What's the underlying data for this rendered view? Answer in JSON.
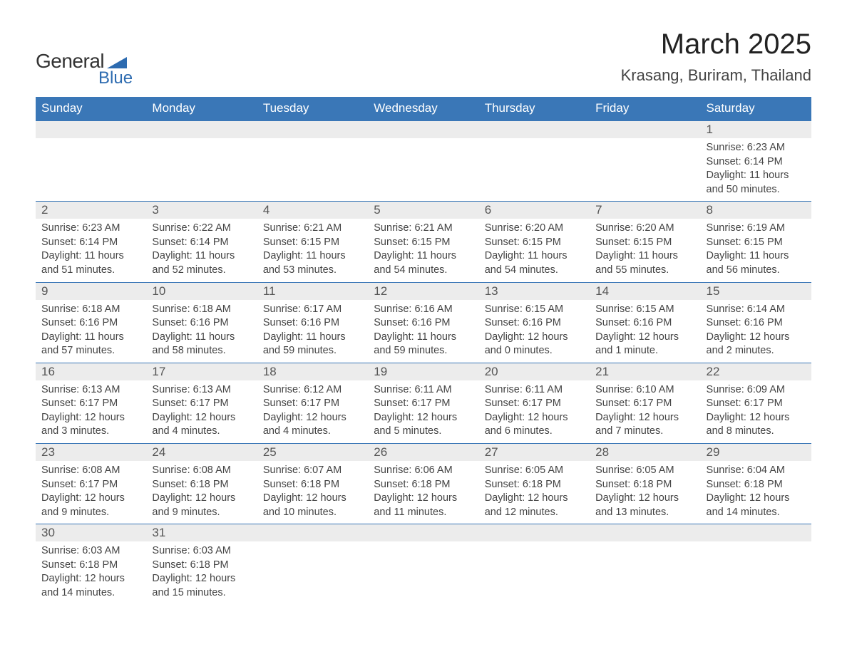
{
  "logo": {
    "text_general": "General",
    "text_blue": "Blue",
    "shape_color": "#2d6bb0"
  },
  "title": "March 2025",
  "location": "Krasang, Buriram, Thailand",
  "colors": {
    "header_bg": "#3a77b7",
    "header_text": "#ffffff",
    "daynum_bg": "#ececec",
    "daynum_text": "#555555",
    "body_text": "#444444",
    "border": "#3a77b7",
    "page_bg": "#ffffff"
  },
  "typography": {
    "title_fontsize": 40,
    "location_fontsize": 22,
    "weekday_fontsize": 17,
    "daynum_fontsize": 17,
    "cell_fontsize": 14.5
  },
  "weekdays": [
    "Sunday",
    "Monday",
    "Tuesday",
    "Wednesday",
    "Thursday",
    "Friday",
    "Saturday"
  ],
  "weeks": [
    [
      {
        "day": "",
        "sunrise": "",
        "sunset": "",
        "daylight1": "",
        "daylight2": ""
      },
      {
        "day": "",
        "sunrise": "",
        "sunset": "",
        "daylight1": "",
        "daylight2": ""
      },
      {
        "day": "",
        "sunrise": "",
        "sunset": "",
        "daylight1": "",
        "daylight2": ""
      },
      {
        "day": "",
        "sunrise": "",
        "sunset": "",
        "daylight1": "",
        "daylight2": ""
      },
      {
        "day": "",
        "sunrise": "",
        "sunset": "",
        "daylight1": "",
        "daylight2": ""
      },
      {
        "day": "",
        "sunrise": "",
        "sunset": "",
        "daylight1": "",
        "daylight2": ""
      },
      {
        "day": "1",
        "sunrise": "Sunrise: 6:23 AM",
        "sunset": "Sunset: 6:14 PM",
        "daylight1": "Daylight: 11 hours",
        "daylight2": "and 50 minutes."
      }
    ],
    [
      {
        "day": "2",
        "sunrise": "Sunrise: 6:23 AM",
        "sunset": "Sunset: 6:14 PM",
        "daylight1": "Daylight: 11 hours",
        "daylight2": "and 51 minutes."
      },
      {
        "day": "3",
        "sunrise": "Sunrise: 6:22 AM",
        "sunset": "Sunset: 6:14 PM",
        "daylight1": "Daylight: 11 hours",
        "daylight2": "and 52 minutes."
      },
      {
        "day": "4",
        "sunrise": "Sunrise: 6:21 AM",
        "sunset": "Sunset: 6:15 PM",
        "daylight1": "Daylight: 11 hours",
        "daylight2": "and 53 minutes."
      },
      {
        "day": "5",
        "sunrise": "Sunrise: 6:21 AM",
        "sunset": "Sunset: 6:15 PM",
        "daylight1": "Daylight: 11 hours",
        "daylight2": "and 54 minutes."
      },
      {
        "day": "6",
        "sunrise": "Sunrise: 6:20 AM",
        "sunset": "Sunset: 6:15 PM",
        "daylight1": "Daylight: 11 hours",
        "daylight2": "and 54 minutes."
      },
      {
        "day": "7",
        "sunrise": "Sunrise: 6:20 AM",
        "sunset": "Sunset: 6:15 PM",
        "daylight1": "Daylight: 11 hours",
        "daylight2": "and 55 minutes."
      },
      {
        "day": "8",
        "sunrise": "Sunrise: 6:19 AM",
        "sunset": "Sunset: 6:15 PM",
        "daylight1": "Daylight: 11 hours",
        "daylight2": "and 56 minutes."
      }
    ],
    [
      {
        "day": "9",
        "sunrise": "Sunrise: 6:18 AM",
        "sunset": "Sunset: 6:16 PM",
        "daylight1": "Daylight: 11 hours",
        "daylight2": "and 57 minutes."
      },
      {
        "day": "10",
        "sunrise": "Sunrise: 6:18 AM",
        "sunset": "Sunset: 6:16 PM",
        "daylight1": "Daylight: 11 hours",
        "daylight2": "and 58 minutes."
      },
      {
        "day": "11",
        "sunrise": "Sunrise: 6:17 AM",
        "sunset": "Sunset: 6:16 PM",
        "daylight1": "Daylight: 11 hours",
        "daylight2": "and 59 minutes."
      },
      {
        "day": "12",
        "sunrise": "Sunrise: 6:16 AM",
        "sunset": "Sunset: 6:16 PM",
        "daylight1": "Daylight: 11 hours",
        "daylight2": "and 59 minutes."
      },
      {
        "day": "13",
        "sunrise": "Sunrise: 6:15 AM",
        "sunset": "Sunset: 6:16 PM",
        "daylight1": "Daylight: 12 hours",
        "daylight2": "and 0 minutes."
      },
      {
        "day": "14",
        "sunrise": "Sunrise: 6:15 AM",
        "sunset": "Sunset: 6:16 PM",
        "daylight1": "Daylight: 12 hours",
        "daylight2": "and 1 minute."
      },
      {
        "day": "15",
        "sunrise": "Sunrise: 6:14 AM",
        "sunset": "Sunset: 6:16 PM",
        "daylight1": "Daylight: 12 hours",
        "daylight2": "and 2 minutes."
      }
    ],
    [
      {
        "day": "16",
        "sunrise": "Sunrise: 6:13 AM",
        "sunset": "Sunset: 6:17 PM",
        "daylight1": "Daylight: 12 hours",
        "daylight2": "and 3 minutes."
      },
      {
        "day": "17",
        "sunrise": "Sunrise: 6:13 AM",
        "sunset": "Sunset: 6:17 PM",
        "daylight1": "Daylight: 12 hours",
        "daylight2": "and 4 minutes."
      },
      {
        "day": "18",
        "sunrise": "Sunrise: 6:12 AM",
        "sunset": "Sunset: 6:17 PM",
        "daylight1": "Daylight: 12 hours",
        "daylight2": "and 4 minutes."
      },
      {
        "day": "19",
        "sunrise": "Sunrise: 6:11 AM",
        "sunset": "Sunset: 6:17 PM",
        "daylight1": "Daylight: 12 hours",
        "daylight2": "and 5 minutes."
      },
      {
        "day": "20",
        "sunrise": "Sunrise: 6:11 AM",
        "sunset": "Sunset: 6:17 PM",
        "daylight1": "Daylight: 12 hours",
        "daylight2": "and 6 minutes."
      },
      {
        "day": "21",
        "sunrise": "Sunrise: 6:10 AM",
        "sunset": "Sunset: 6:17 PM",
        "daylight1": "Daylight: 12 hours",
        "daylight2": "and 7 minutes."
      },
      {
        "day": "22",
        "sunrise": "Sunrise: 6:09 AM",
        "sunset": "Sunset: 6:17 PM",
        "daylight1": "Daylight: 12 hours",
        "daylight2": "and 8 minutes."
      }
    ],
    [
      {
        "day": "23",
        "sunrise": "Sunrise: 6:08 AM",
        "sunset": "Sunset: 6:17 PM",
        "daylight1": "Daylight: 12 hours",
        "daylight2": "and 9 minutes."
      },
      {
        "day": "24",
        "sunrise": "Sunrise: 6:08 AM",
        "sunset": "Sunset: 6:18 PM",
        "daylight1": "Daylight: 12 hours",
        "daylight2": "and 9 minutes."
      },
      {
        "day": "25",
        "sunrise": "Sunrise: 6:07 AM",
        "sunset": "Sunset: 6:18 PM",
        "daylight1": "Daylight: 12 hours",
        "daylight2": "and 10 minutes."
      },
      {
        "day": "26",
        "sunrise": "Sunrise: 6:06 AM",
        "sunset": "Sunset: 6:18 PM",
        "daylight1": "Daylight: 12 hours",
        "daylight2": "and 11 minutes."
      },
      {
        "day": "27",
        "sunrise": "Sunrise: 6:05 AM",
        "sunset": "Sunset: 6:18 PM",
        "daylight1": "Daylight: 12 hours",
        "daylight2": "and 12 minutes."
      },
      {
        "day": "28",
        "sunrise": "Sunrise: 6:05 AM",
        "sunset": "Sunset: 6:18 PM",
        "daylight1": "Daylight: 12 hours",
        "daylight2": "and 13 minutes."
      },
      {
        "day": "29",
        "sunrise": "Sunrise: 6:04 AM",
        "sunset": "Sunset: 6:18 PM",
        "daylight1": "Daylight: 12 hours",
        "daylight2": "and 14 minutes."
      }
    ],
    [
      {
        "day": "30",
        "sunrise": "Sunrise: 6:03 AM",
        "sunset": "Sunset: 6:18 PM",
        "daylight1": "Daylight: 12 hours",
        "daylight2": "and 14 minutes."
      },
      {
        "day": "31",
        "sunrise": "Sunrise: 6:03 AM",
        "sunset": "Sunset: 6:18 PM",
        "daylight1": "Daylight: 12 hours",
        "daylight2": "and 15 minutes."
      },
      {
        "day": "",
        "sunrise": "",
        "sunset": "",
        "daylight1": "",
        "daylight2": ""
      },
      {
        "day": "",
        "sunrise": "",
        "sunset": "",
        "daylight1": "",
        "daylight2": ""
      },
      {
        "day": "",
        "sunrise": "",
        "sunset": "",
        "daylight1": "",
        "daylight2": ""
      },
      {
        "day": "",
        "sunrise": "",
        "sunset": "",
        "daylight1": "",
        "daylight2": ""
      },
      {
        "day": "",
        "sunrise": "",
        "sunset": "",
        "daylight1": "",
        "daylight2": ""
      }
    ]
  ]
}
